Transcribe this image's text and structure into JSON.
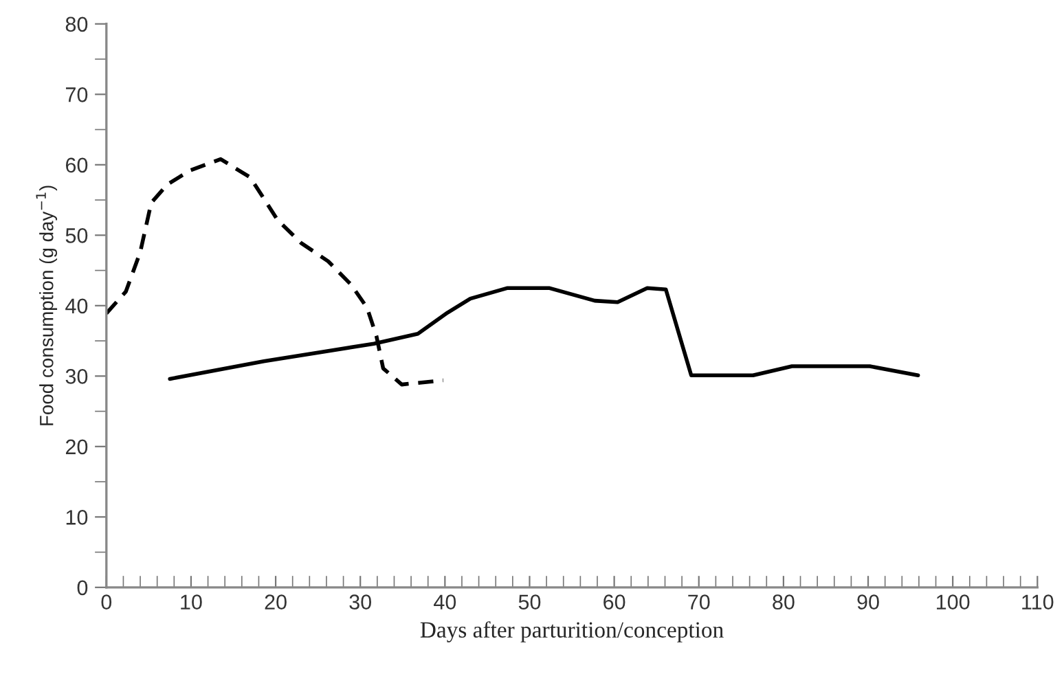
{
  "chart_data": {
    "type": "line",
    "xlabel": "Days after parturition/conception",
    "ylabel": "Food consumption (g day$^{−1}$)",
    "xlim": [
      0,
      110
    ],
    "ylim": [
      0,
      80
    ],
    "xticks": [
      0,
      10,
      20,
      30,
      40,
      50,
      60,
      70,
      80,
      90,
      100,
      110
    ],
    "yticks": [
      0,
      10,
      20,
      30,
      40,
      50,
      60,
      70,
      80
    ],
    "grid": false,
    "marker": "none",
    "series": [
      {
        "color": "#000000",
        "line_style": "dashed",
        "x": [
          0,
          2.3,
          4,
          5.3,
          7.2,
          9.9,
          13.5,
          17,
          20.2,
          23,
          26.2,
          28.9,
          30.8,
          31.9,
          32.7,
          34.9,
          39.8
        ],
        "values": [
          38.9,
          42,
          47.6,
          54.6,
          57.2,
          59.2,
          60.8,
          58.2,
          52.2,
          48.9,
          46.3,
          43,
          39.7,
          35.7,
          31.1,
          28.8,
          29.4
        ]
      },
      {
        "color": "#000000",
        "line_style": "solid",
        "x": [
          7.5,
          18.6,
          31.6,
          36.8,
          40.3,
          43,
          47.4,
          52.3,
          57.7,
          60.4,
          63.9,
          66.1,
          69.1,
          76.4,
          81,
          90.2,
          95.9
        ],
        "values": [
          29.6,
          32.1,
          34.6,
          36,
          39,
          41,
          42.5,
          42.5,
          40.7,
          40.5,
          42.5,
          42.3,
          30.1,
          30.1,
          31.4,
          31.4,
          30.1
        ]
      }
    ]
  }
}
